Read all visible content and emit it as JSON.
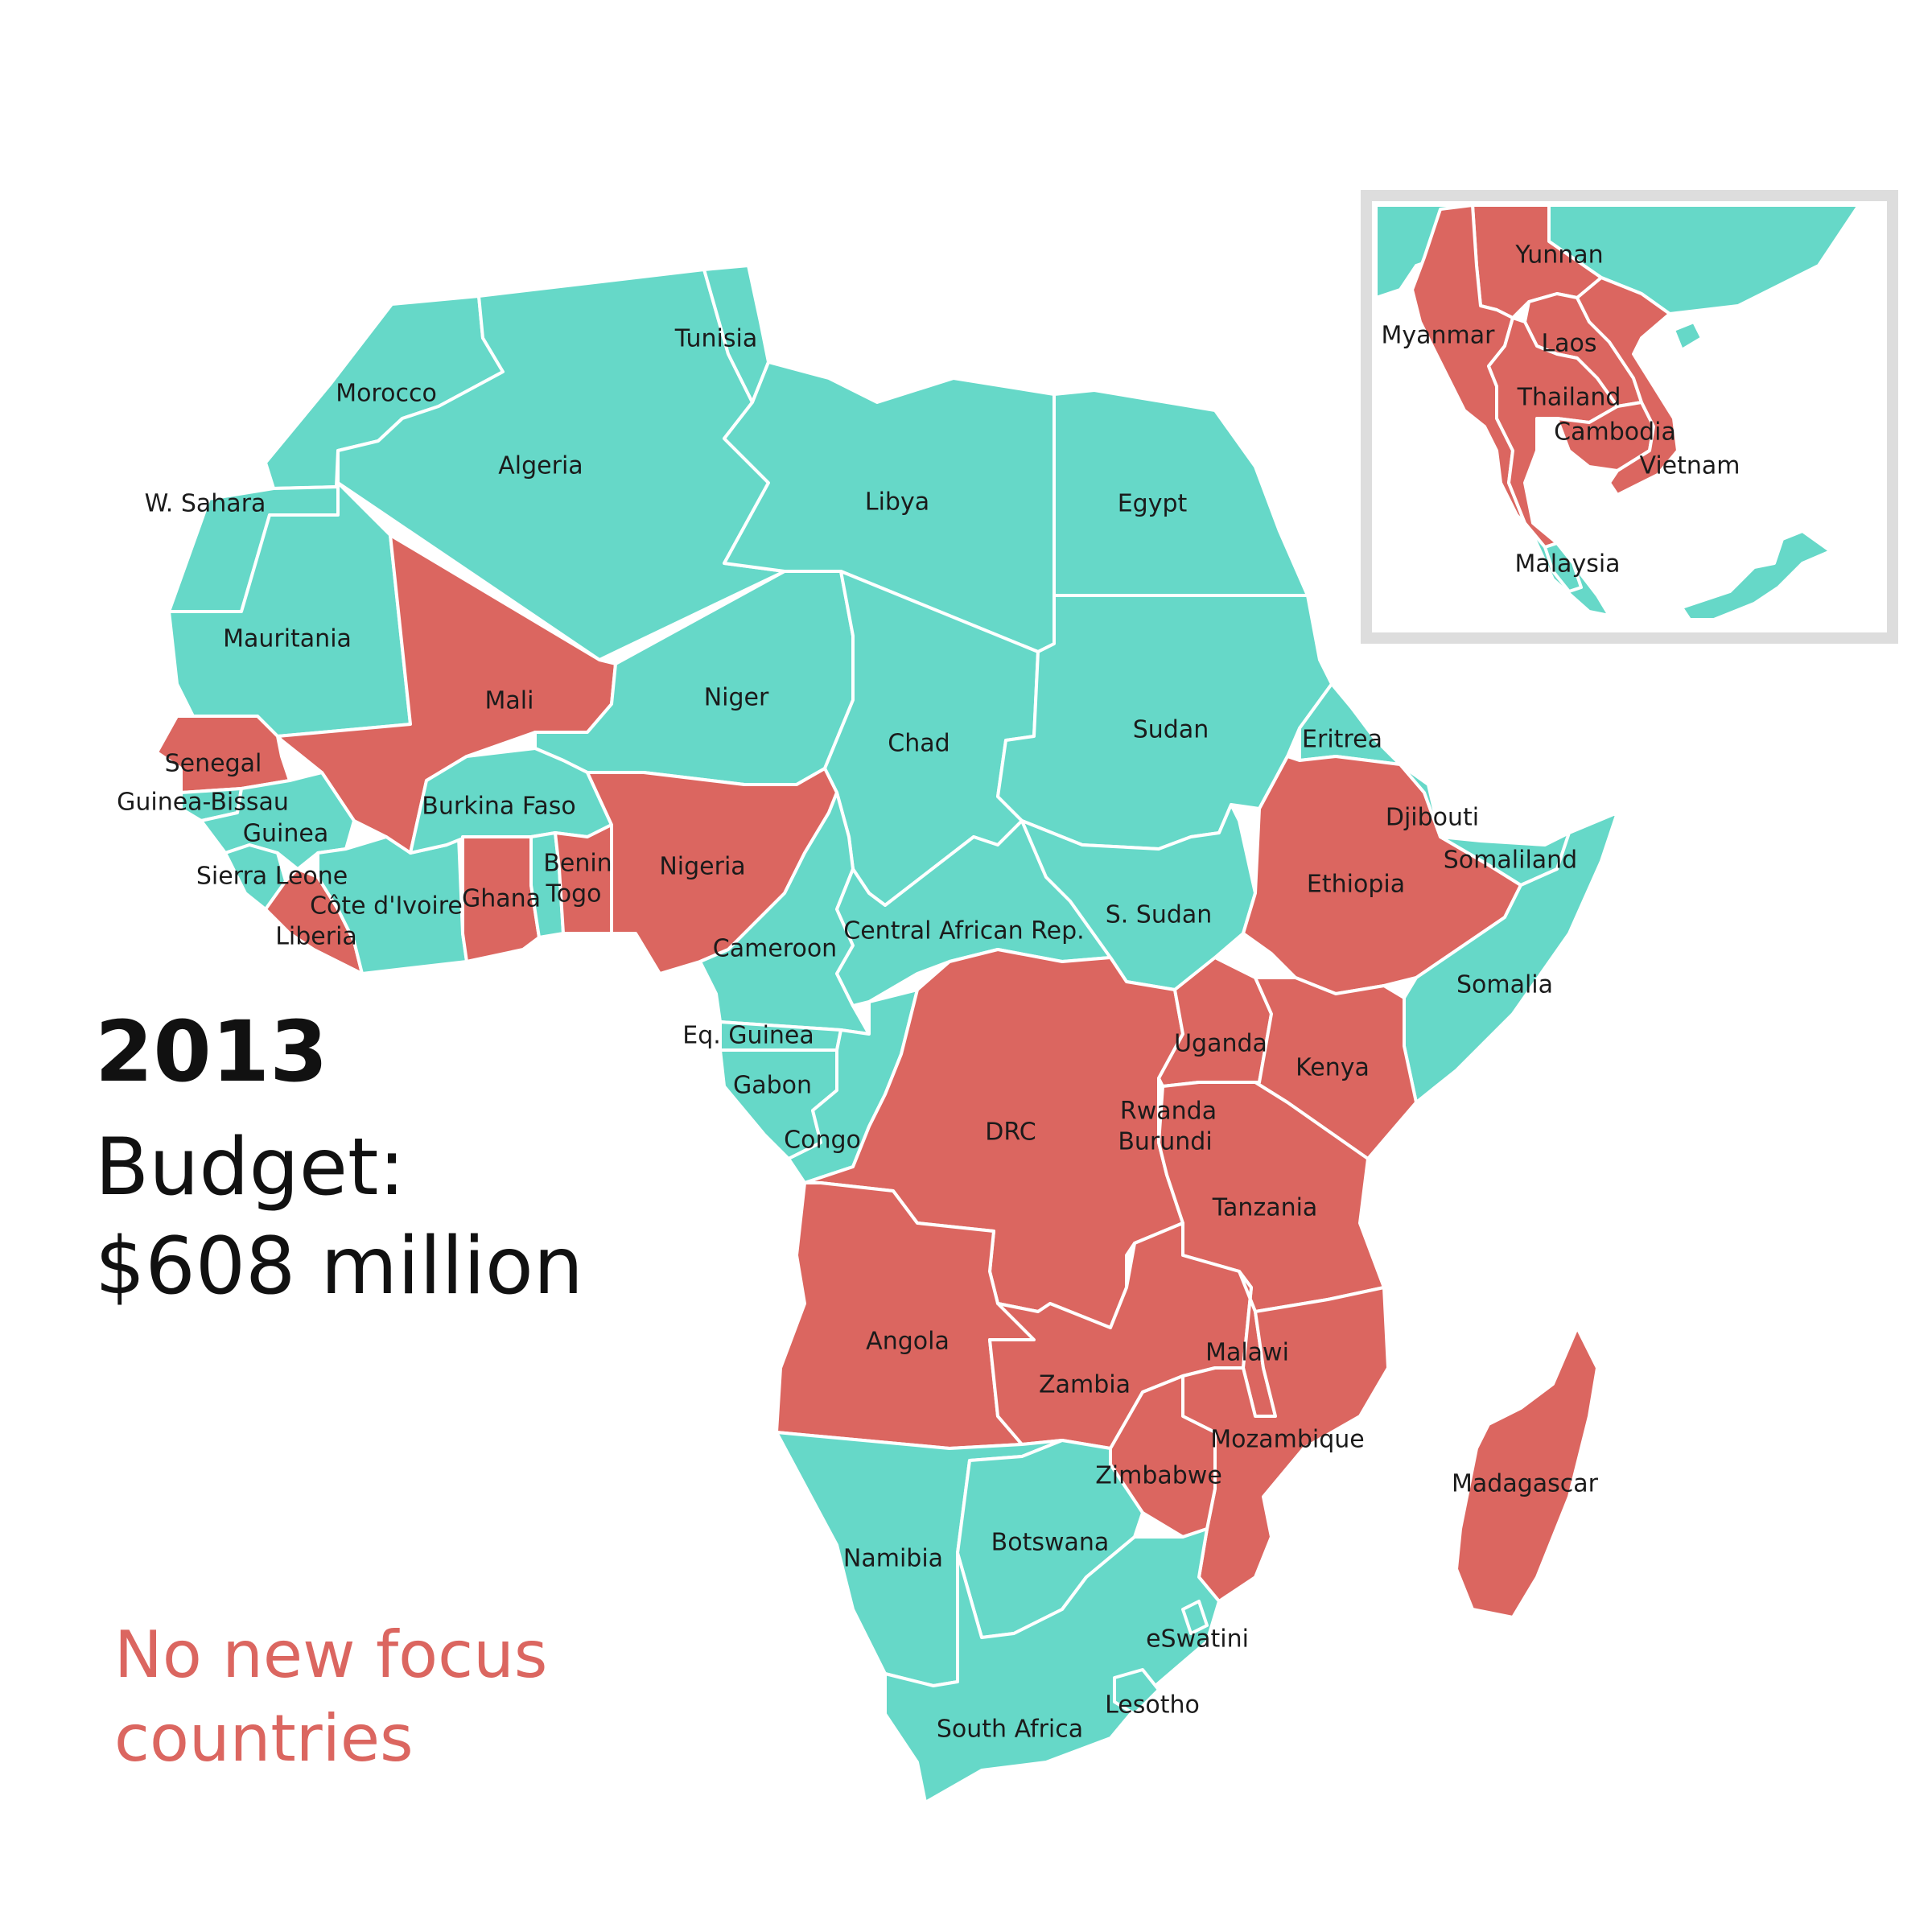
{
  "year": "2013",
  "budget_label": "Budget:",
  "budget_value": "$608 million",
  "note": {
    "line1": "No new focus",
    "line2": "countries"
  },
  "colors": {
    "focus": "#db6660",
    "non_focus": "#66d8c8",
    "border": "#ffffff",
    "inset_frame": "#dddddd",
    "note": "#db6660"
  },
  "africa": {
    "morocco": {
      "label": "Morocco",
      "focus": false
    },
    "w_sahara": {
      "label": "W. Sahara",
      "focus": false
    },
    "algeria": {
      "label": "Algeria",
      "focus": false
    },
    "tunisia": {
      "label": "Tunisia",
      "focus": false
    },
    "libya": {
      "label": "Libya",
      "focus": false
    },
    "egypt": {
      "label": "Egypt",
      "focus": false
    },
    "mauritania": {
      "label": "Mauritania",
      "focus": false
    },
    "mali": {
      "label": "Mali",
      "focus": true
    },
    "niger": {
      "label": "Niger",
      "focus": false
    },
    "chad": {
      "label": "Chad",
      "focus": false
    },
    "sudan": {
      "label": "Sudan",
      "focus": false
    },
    "eritrea": {
      "label": "Eritrea",
      "focus": false
    },
    "senegal": {
      "label": "Senegal",
      "focus": true
    },
    "guinea_bissau": {
      "label": "Guinea-Bissau",
      "focus": false
    },
    "guinea": {
      "label": "Guinea",
      "focus": false
    },
    "sierra_leone": {
      "label": "Sierra Leone",
      "focus": false
    },
    "liberia": {
      "label": "Liberia",
      "focus": true
    },
    "cote_divoire": {
      "label": "Côte d'Ivoire",
      "focus": false
    },
    "burkina_faso": {
      "label": "Burkina Faso",
      "focus": false
    },
    "ghana": {
      "label": "Ghana",
      "focus": true
    },
    "togo": {
      "label": "Togo",
      "focus": false
    },
    "benin": {
      "label": "Benin",
      "focus": true
    },
    "nigeria": {
      "label": "Nigeria",
      "focus": true
    },
    "cameroon": {
      "label": "Cameroon",
      "focus": false
    },
    "car": {
      "label": "Central African Rep.",
      "focus": false
    },
    "s_sudan": {
      "label": "S. Sudan",
      "focus": false
    },
    "ethiopia": {
      "label": "Ethiopia",
      "focus": true
    },
    "djibouti": {
      "label": "Djibouti",
      "focus": false
    },
    "somaliland": {
      "label": "Somaliland",
      "focus": false
    },
    "somalia": {
      "label": "Somalia",
      "focus": false
    },
    "eq_guinea": {
      "label": "Eq. Guinea",
      "focus": false
    },
    "gabon": {
      "label": "Gabon",
      "focus": false
    },
    "congo": {
      "label": "Congo",
      "focus": false
    },
    "drc": {
      "label": "DRC",
      "focus": true
    },
    "uganda": {
      "label": "Uganda",
      "focus": true
    },
    "kenya": {
      "label": "Kenya",
      "focus": true
    },
    "rwanda": {
      "label": "Rwanda",
      "focus": true
    },
    "burundi": {
      "label": "Burundi",
      "focus": true
    },
    "tanzania": {
      "label": "Tanzania",
      "focus": true
    },
    "angola": {
      "label": "Angola",
      "focus": true
    },
    "zambia": {
      "label": "Zambia",
      "focus": true
    },
    "malawi": {
      "label": "Malawi",
      "focus": true
    },
    "mozambique": {
      "label": "Mozambique",
      "focus": true
    },
    "zimbabwe": {
      "label": "Zimbabwe",
      "focus": true
    },
    "namibia": {
      "label": "Namibia",
      "focus": false
    },
    "botswana": {
      "label": "Botswana",
      "focus": false
    },
    "south_africa": {
      "label": "South Africa",
      "focus": false
    },
    "eswatini": {
      "label": "eSwatini",
      "focus": false
    },
    "lesotho": {
      "label": "Lesotho",
      "focus": false
    },
    "madagascar": {
      "label": "Madagascar",
      "focus": true
    }
  },
  "asia": {
    "yunnan": {
      "label": "Yunnan",
      "focus": true
    },
    "myanmar": {
      "label": "Myanmar",
      "focus": true
    },
    "laos": {
      "label": "Laos",
      "focus": true
    },
    "thailand": {
      "label": "Thailand",
      "focus": true
    },
    "cambodia": {
      "label": "Cambodia",
      "focus": true
    },
    "vietnam": {
      "label": "Vietnam",
      "focus": true
    },
    "malaysia": {
      "label": "Malaysia",
      "focus": false
    }
  }
}
